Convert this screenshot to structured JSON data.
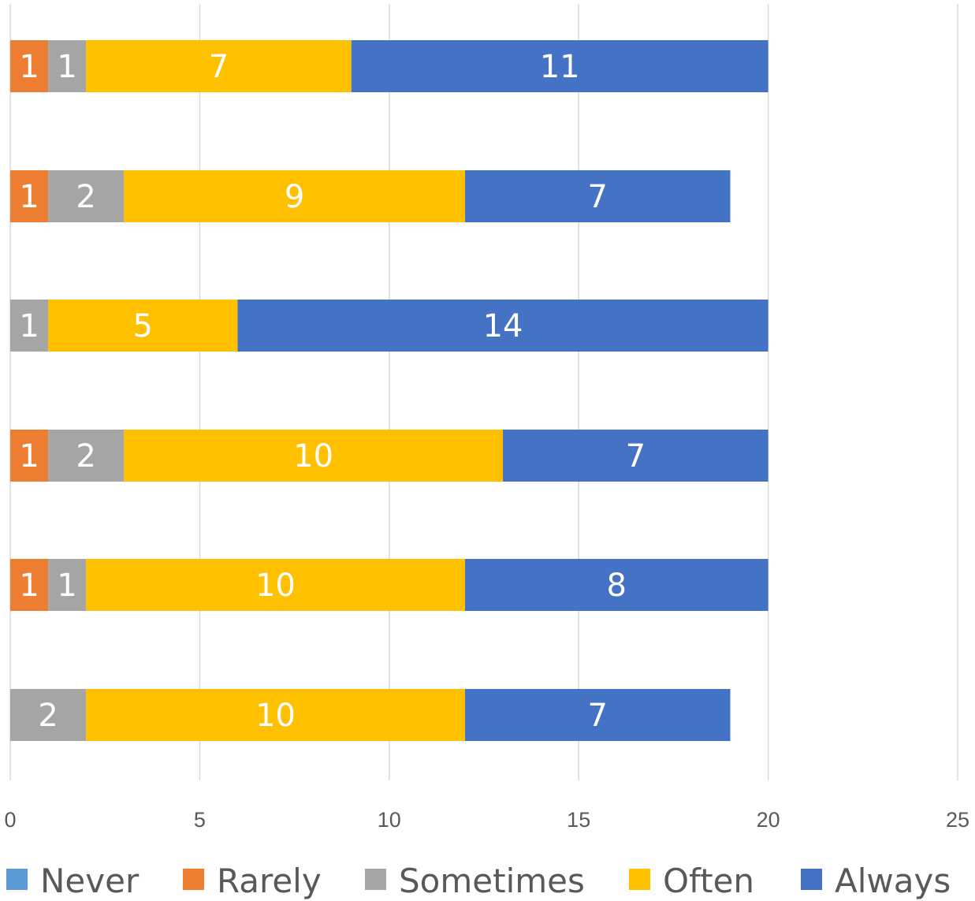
{
  "chart_data": {
    "type": "bar",
    "orientation": "horizontal",
    "stacked": true,
    "categories": [
      "",
      "",
      "",
      "",
      "",
      ""
    ],
    "series": [
      {
        "name": "Never",
        "color": "#5B9BD5",
        "values": [
          0,
          0,
          0,
          0,
          0,
          0
        ]
      },
      {
        "name": "Rarely",
        "color": "#ED7D31",
        "values": [
          1,
          1,
          0,
          1,
          1,
          0
        ]
      },
      {
        "name": "Sometimes",
        "color": "#A5A5A5",
        "values": [
          1,
          2,
          1,
          2,
          1,
          2
        ]
      },
      {
        "name": "Often",
        "color": "#FFC000",
        "values": [
          7,
          9,
          5,
          10,
          10,
          10
        ]
      },
      {
        "name": "Always",
        "color": "#4472C4",
        "values": [
          11,
          7,
          14,
          7,
          8,
          7
        ]
      }
    ],
    "xlim": [
      0,
      25
    ],
    "xticks": [
      "0",
      "5",
      "10",
      "15",
      "20",
      "25"
    ],
    "grid": "vertical",
    "legend": "bottom",
    "data_labels": true
  }
}
